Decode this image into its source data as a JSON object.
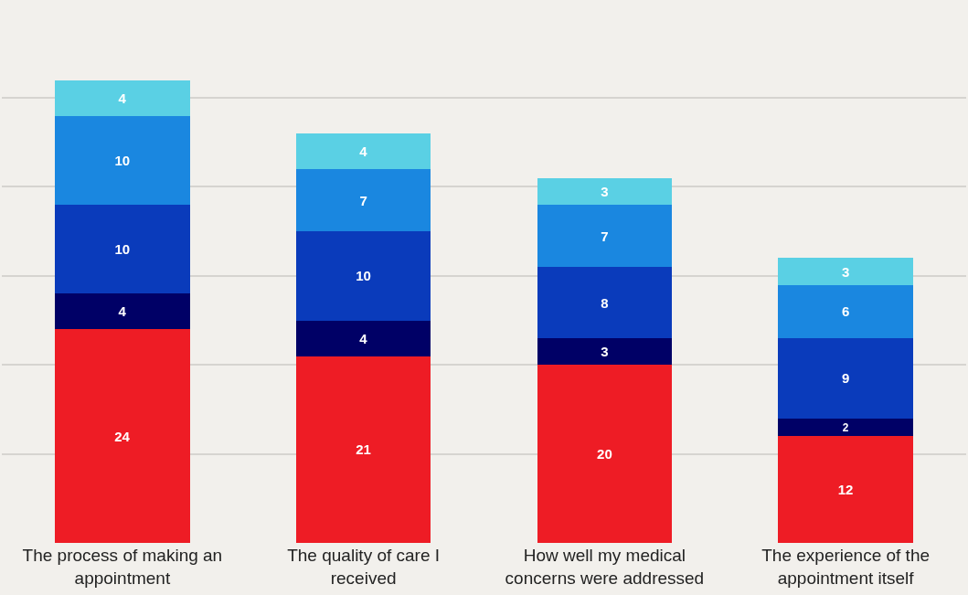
{
  "chart_data": {
    "type": "bar",
    "stacked": true,
    "categories": [
      "The process of making an appointment",
      "The quality of care I received",
      "How well my medical concerns were addressed",
      "The experience of the appointment itself"
    ],
    "series": [
      {
        "color": "#ee1c25",
        "values": [
          24,
          21,
          20,
          12
        ]
      },
      {
        "color": "#000066",
        "values": [
          4,
          4,
          3,
          2
        ]
      },
      {
        "color": "#0a3bbb",
        "values": [
          10,
          10,
          8,
          9
        ]
      },
      {
        "color": "#1a87e0",
        "values": [
          10,
          7,
          7,
          6
        ]
      },
      {
        "color": "#5ad0e4",
        "values": [
          4,
          4,
          3,
          3
        ]
      }
    ],
    "data_labels": true,
    "ylim": [
      0,
      61
    ],
    "yticks": [
      {
        "value": 10,
        "label": null
      },
      {
        "value": 20,
        "label": null
      },
      {
        "value": 30,
        "label": null
      },
      {
        "value": 40,
        "label": null
      },
      {
        "value": 50,
        "label": null
      }
    ],
    "grid": "y",
    "tick_labels": "x"
  }
}
